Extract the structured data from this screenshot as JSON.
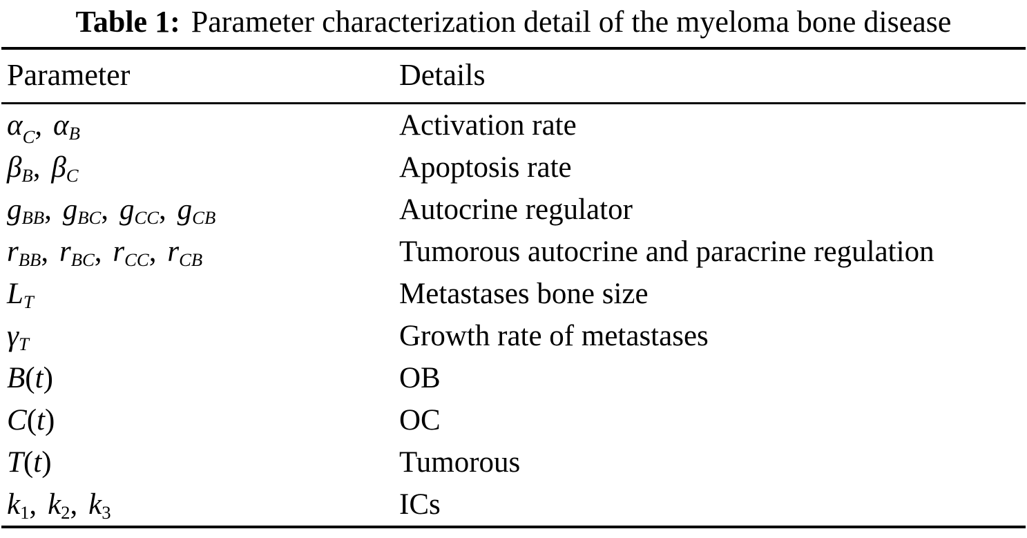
{
  "caption": {
    "label": "Table 1:",
    "text": "Parameter characterization detail of the myeloma bone disease"
  },
  "table": {
    "columns": [
      "Parameter",
      "Details"
    ],
    "rows": [
      {
        "parameter": [
          {
            "base": "α",
            "sub": "C",
            "low_sub": true
          },
          {
            "base": "α",
            "sub": "B"
          }
        ],
        "details": "Activation rate"
      },
      {
        "parameter": [
          {
            "base": "β",
            "sub": "B"
          },
          {
            "base": "β",
            "sub": "C"
          }
        ],
        "details": "Apoptosis rate"
      },
      {
        "parameter": [
          {
            "base": "g",
            "sub": "BB"
          },
          {
            "base": "g",
            "sub": "BC"
          },
          {
            "base": "g",
            "sub": "CC"
          },
          {
            "base": "g",
            "sub": "CB"
          }
        ],
        "details": "Autocrine regulator"
      },
      {
        "parameter": [
          {
            "base": "r",
            "sub": "BB"
          },
          {
            "base": "r",
            "sub": "BC"
          },
          {
            "base": "r",
            "sub": "CC"
          },
          {
            "base": "r",
            "sub": "CB"
          }
        ],
        "details": "Tumorous autocrine and paracrine regulation"
      },
      {
        "parameter": [
          {
            "base": "L",
            "sub": "T"
          }
        ],
        "details": "Metastases bone size"
      },
      {
        "parameter": [
          {
            "base": "γ",
            "sub": "T"
          }
        ],
        "details": "Growth rate of metastases"
      },
      {
        "parameter": [
          {
            "base": "B",
            "call": "t"
          }
        ],
        "details": "OB"
      },
      {
        "parameter": [
          {
            "base": "C",
            "call": "t"
          }
        ],
        "details": "OC"
      },
      {
        "parameter": [
          {
            "base": "T",
            "call": "t"
          }
        ],
        "details": "Tumorous"
      },
      {
        "parameter": [
          {
            "base": "k",
            "sub": "1"
          },
          {
            "base": "k",
            "sub": "2"
          },
          {
            "base": "k",
            "sub": "3"
          }
        ],
        "details": "ICs"
      }
    ]
  }
}
